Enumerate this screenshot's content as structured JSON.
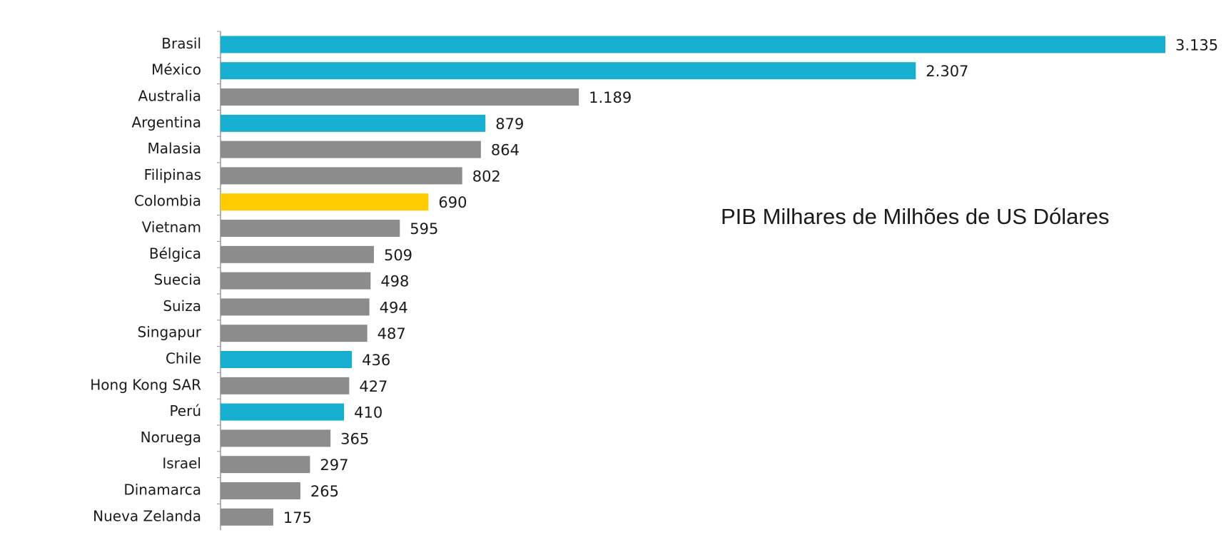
{
  "chart_data": {
    "type": "barh",
    "annotation": "PIB Milhares de Milhões de US Dólares",
    "categories": [
      "Brasil",
      "México",
      "Australia",
      "Argentina",
      "Malasia",
      "Filipinas",
      "Colombia",
      "Vietnam",
      "Bélgica",
      "Suecia",
      "Suiza",
      "Singapur",
      "Chile",
      "Hong Kong SAR",
      "Perú",
      "Noruega",
      "Israel",
      "Dinamarca",
      "Nueva Zelanda"
    ],
    "values": [
      3135,
      2307,
      1189,
      879,
      864,
      802,
      690,
      595,
      509,
      498,
      494,
      487,
      436,
      427,
      410,
      365,
      297,
      265,
      175
    ],
    "value_labels": [
      "3.135",
      "2.307",
      "1.189",
      "879",
      "864",
      "802",
      "690",
      "595",
      "509",
      "498",
      "494",
      "487",
      "436",
      "427",
      "410",
      "365",
      "297",
      "265",
      "175"
    ],
    "colors": [
      "#17afd0",
      "#17afd0",
      "#8c8c8c",
      "#17afd0",
      "#8c8c8c",
      "#8c8c8c",
      "#ffcc00",
      "#8c8c8c",
      "#8c8c8c",
      "#8c8c8c",
      "#8c8c8c",
      "#8c8c8c",
      "#17afd0",
      "#8c8c8c",
      "#17afd0",
      "#8c8c8c",
      "#8c8c8c",
      "#8c8c8c",
      "#8c8c8c"
    ]
  }
}
